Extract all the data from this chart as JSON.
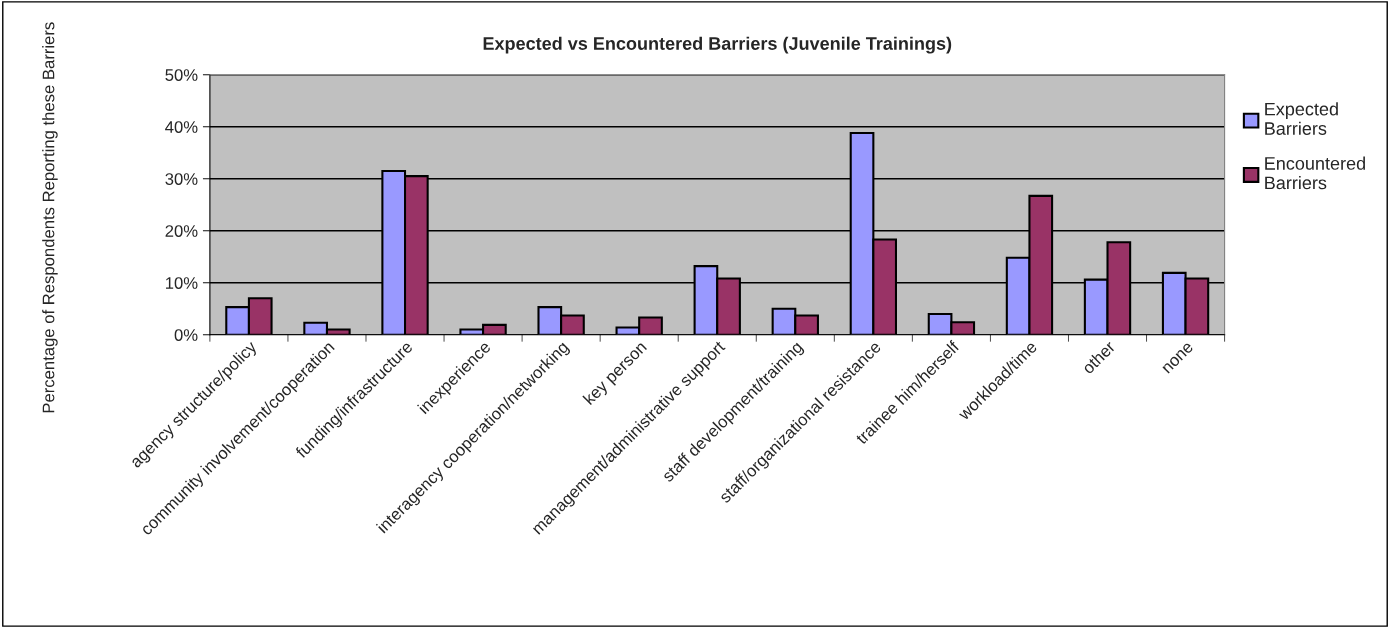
{
  "chart_data": {
    "type": "bar",
    "title": "Expected vs Encountered Barriers (Juvenile Trainings)",
    "ylabel": "Percentage of Respondents Reporting these Barriers",
    "categories": [
      "agency structure/policy",
      "community involvement/cooperation",
      "funding/infrastructure",
      "inexperience",
      "interagency cooperation/networking",
      "key person",
      "management/administrative support",
      "staff development/training",
      "staff/organizational resistance",
      "trainee him/herself",
      "workload/time",
      "other",
      "none"
    ],
    "series": [
      {
        "name": "Expected Barriers",
        "color": "#9999ff",
        "values": [
          5.3,
          2.3,
          31.5,
          1.0,
          5.3,
          1.4,
          13.2,
          5.0,
          38.8,
          4.0,
          14.8,
          10.6,
          11.9
        ]
      },
      {
        "name": "Encountered Barriers",
        "color": "#993366",
        "values": [
          7.0,
          1.0,
          30.5,
          1.9,
          3.7,
          3.3,
          10.8,
          3.7,
          18.3,
          2.4,
          26.7,
          17.8,
          10.8
        ]
      }
    ],
    "ylim": [
      0,
      50
    ],
    "yticks": [
      {
        "value": 0,
        "label": "0%"
      },
      {
        "value": 10,
        "label": "10%"
      },
      {
        "value": 20,
        "label": "20%"
      },
      {
        "value": 30,
        "label": "30%"
      },
      {
        "value": 40,
        "label": "40%"
      },
      {
        "value": 50,
        "label": "50%"
      }
    ],
    "grid": "y",
    "legend": "right"
  }
}
